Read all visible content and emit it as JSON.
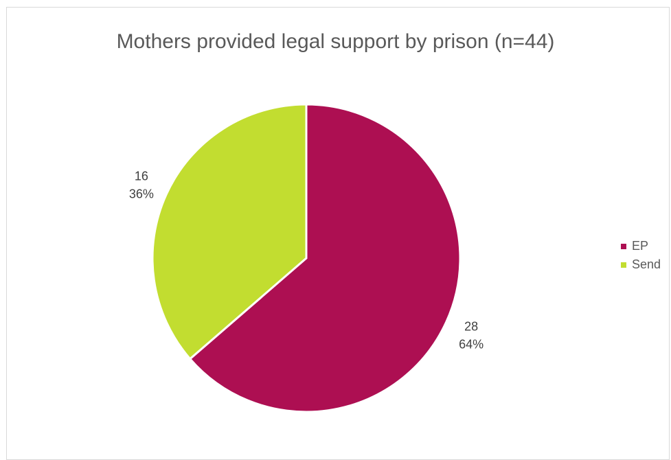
{
  "chart_data": {
    "type": "pie",
    "title": "Mothers provided legal support by prison (n=44)",
    "categories": [
      "EP",
      "Send"
    ],
    "values": [
      28,
      16
    ],
    "percent_labels": [
      "64%",
      "36%"
    ],
    "colors": [
      "#ad0f52",
      "#c2dd30"
    ],
    "legend_placement": "right"
  }
}
